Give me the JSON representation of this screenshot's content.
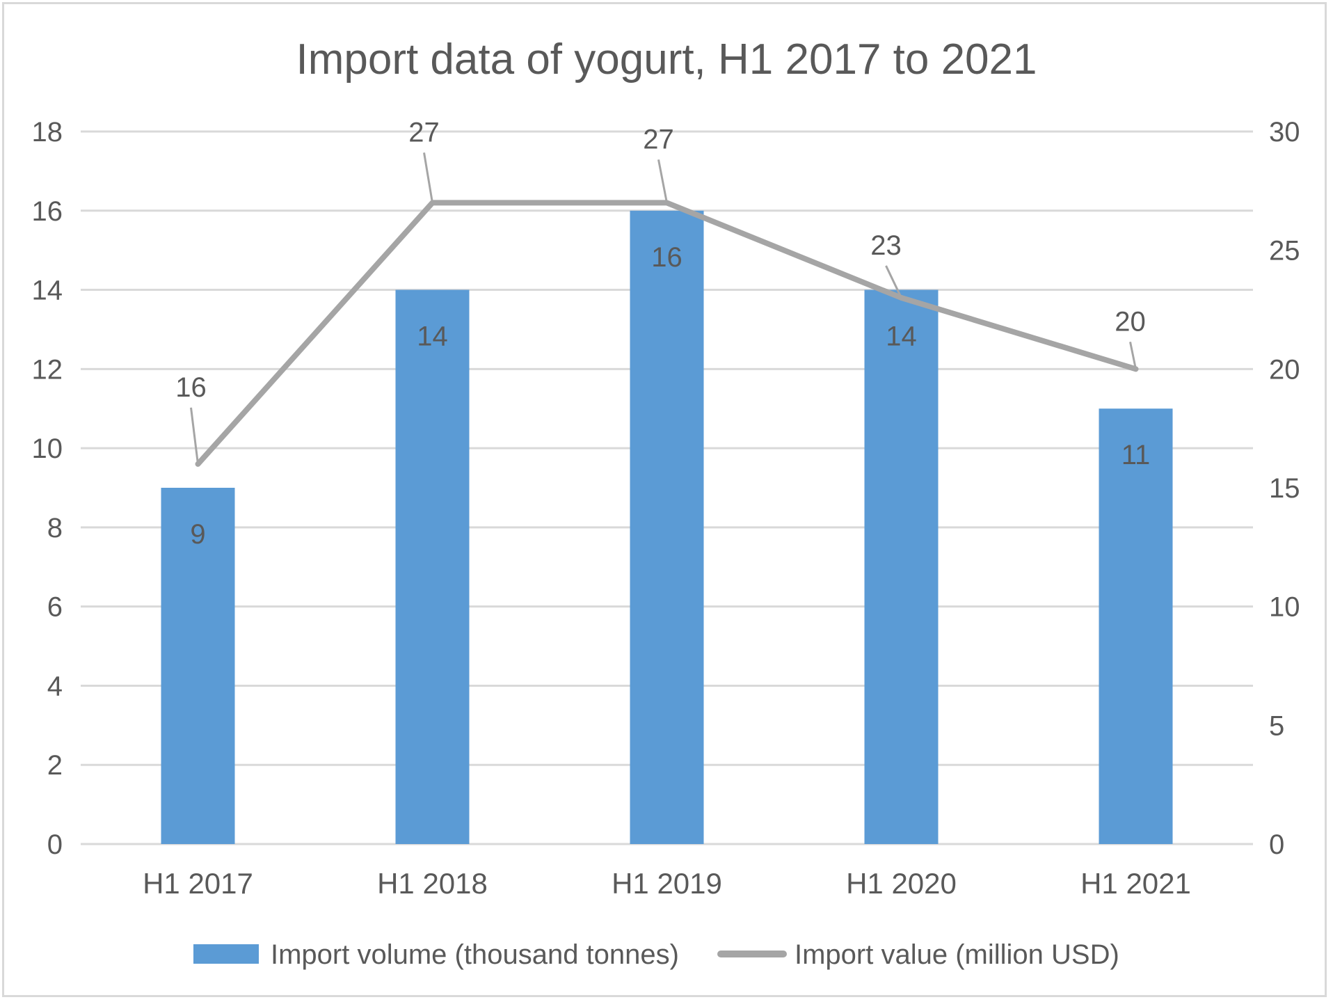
{
  "chart_data": {
    "type": "bar",
    "title": "Import data of yogurt, H1 2017 to 2021",
    "categories": [
      "H1 2017",
      "H1 2018",
      "H1 2019",
      "H1 2020",
      "H1 2021"
    ],
    "series": [
      {
        "name": "Import volume (thousand tonnes)",
        "type": "bar",
        "axis": "left",
        "color": "#5b9bd5",
        "values": [
          9,
          14,
          16,
          14,
          11
        ],
        "labels": [
          "9",
          "14",
          "16",
          "14",
          "11"
        ]
      },
      {
        "name": "Import value (million USD)",
        "type": "line",
        "axis": "right",
        "color": "#a5a5a5",
        "values": [
          16,
          27,
          27,
          23,
          20
        ],
        "labels": [
          "16",
          "27",
          "27",
          "23",
          "20"
        ]
      }
    ],
    "y_left": {
      "min": 0,
      "max": 18,
      "ticks": [
        "0",
        "2",
        "4",
        "6",
        "8",
        "10",
        "12",
        "14",
        "16",
        "18"
      ]
    },
    "y_right": {
      "min": 0,
      "max": 30,
      "ticks": [
        "0",
        "5",
        "10",
        "15",
        "20",
        "25",
        "30"
      ]
    },
    "grid": true,
    "legend_position": "bottom"
  }
}
